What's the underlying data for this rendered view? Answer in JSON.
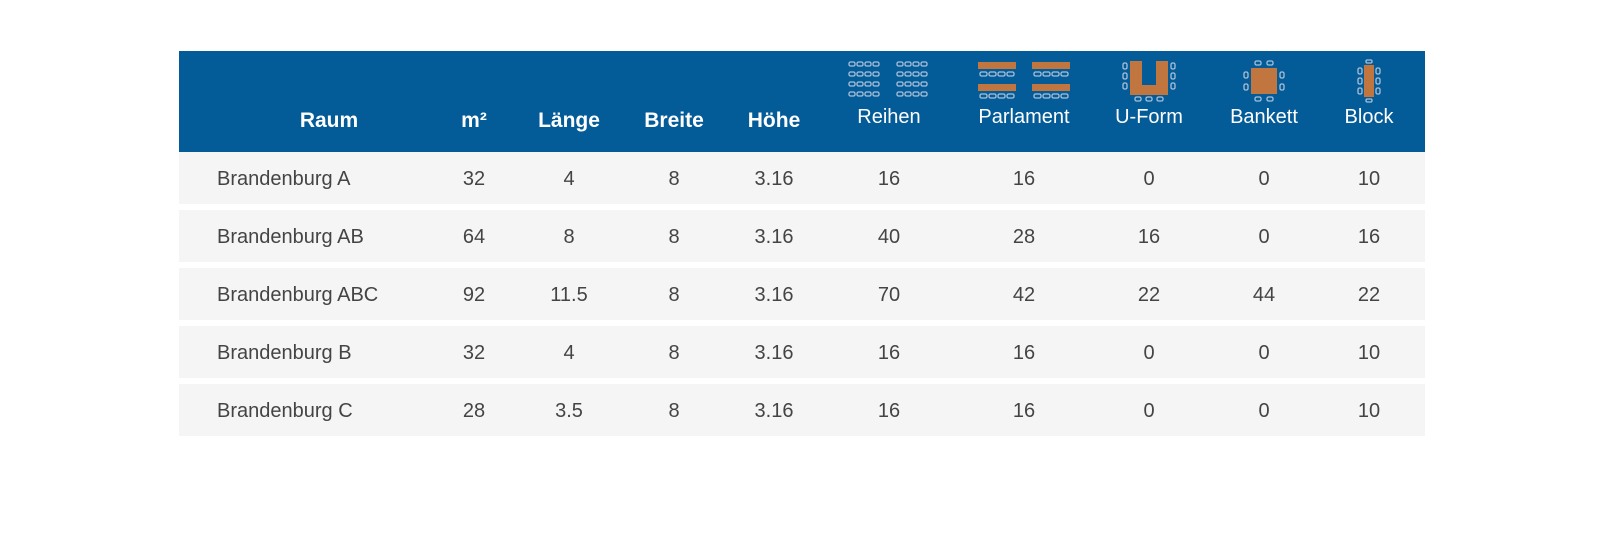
{
  "table": {
    "headers": {
      "raum": "Raum",
      "m2": "m²",
      "laenge": "Länge",
      "breite": "Breite",
      "hoehe": "Höhe",
      "reihen": "Reihen",
      "parlament": "Parlament",
      "uform": "U-Form",
      "bankett": "Bankett",
      "block": "Block"
    },
    "header_icons": {
      "reihen": "rows-seating-icon",
      "parlament": "parliament-seating-icon",
      "uform": "u-shape-seating-icon",
      "bankett": "banquet-seating-icon",
      "block": "block-seating-icon"
    },
    "rows": [
      {
        "raum": "Brandenburg A",
        "m2": "32",
        "laenge": "4",
        "breite": "8",
        "hoehe": "3.16",
        "reihen": "16",
        "parlament": "16",
        "uform": "0",
        "bankett": "0",
        "block": "10"
      },
      {
        "raum": "Brandenburg AB",
        "m2": "64",
        "laenge": "8",
        "breite": "8",
        "hoehe": "3.16",
        "reihen": "40",
        "parlament": "28",
        "uform": "16",
        "bankett": "0",
        "block": "16"
      },
      {
        "raum": "Brandenburg ABC",
        "m2": "92",
        "laenge": "11.5",
        "breite": "8",
        "hoehe": "3.16",
        "reihen": "70",
        "parlament": "42",
        "uform": "22",
        "bankett": "44",
        "block": "22"
      },
      {
        "raum": "Brandenburg B",
        "m2": "32",
        "laenge": "4",
        "breite": "8",
        "hoehe": "3.16",
        "reihen": "16",
        "parlament": "16",
        "uform": "0",
        "bankett": "0",
        "block": "10"
      },
      {
        "raum": "Brandenburg C",
        "m2": "28",
        "laenge": "3.5",
        "breite": "8",
        "hoehe": "3.16",
        "reihen": "16",
        "parlament": "16",
        "uform": "0",
        "bankett": "0",
        "block": "10"
      }
    ]
  },
  "colors": {
    "header_bg": "#035b98",
    "header_text": "#ffffff",
    "row_bg": "#f5f5f5",
    "row_text": "#444444",
    "wood": "#c2763f"
  }
}
